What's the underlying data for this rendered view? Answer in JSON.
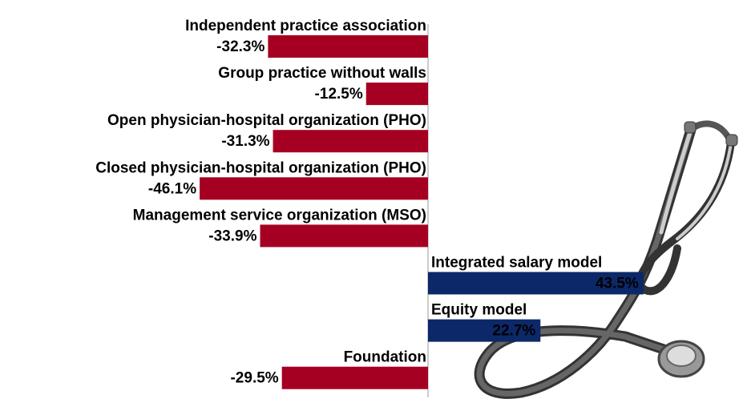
{
  "chart_data": {
    "type": "bar",
    "orientation": "horizontal",
    "categories": [
      "Independent practice association",
      "Group practice without walls",
      "Open physician-hospital organization (PHO)",
      "Closed physician-hospital organization (PHO)",
      "Management service organization (MSO)",
      "Integrated salary model",
      "Equity model",
      "Foundation"
    ],
    "values": [
      -32.3,
      -12.5,
      -31.3,
      -46.1,
      -33.9,
      43.5,
      22.7,
      -29.5
    ],
    "value_labels": [
      "-32.3%",
      "-12.5%",
      "-31.3%",
      "-46.1%",
      "-33.9%",
      "43.5%",
      "22.7%",
      "-29.5%"
    ],
    "negative_color": "#a50021",
    "positive_color": "#0c2868"
  }
}
